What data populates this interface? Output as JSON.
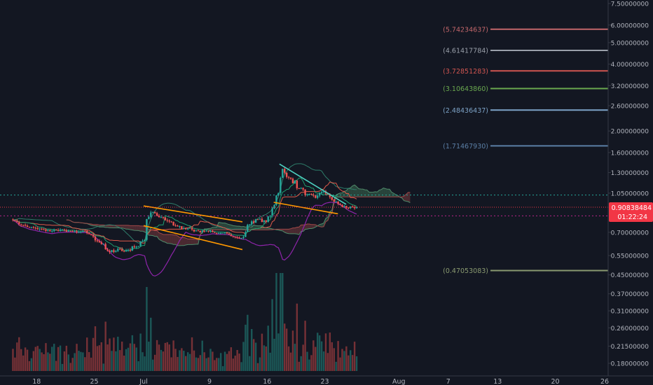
{
  "colors": {
    "background": "#131722",
    "axis_text": "#b2b5be",
    "axis_line": "#363a45",
    "bull": "#26a69a",
    "bear": "#ef5350",
    "price_line": "#f23645",
    "price_tag_bg": "#f23645",
    "price_tag_text": "#ffffff",
    "channel_orange": "#ff9800",
    "wedge_teal": "#4dd0c0",
    "baseline_green": "#1e9e6f",
    "conversion_red": "#e05a4a",
    "cloud_green": "#3d6b52",
    "cloud_red": "#7a3a3e",
    "envelope_purple": "#8e24aa",
    "volume": "#8a6d2f",
    "cyan_hline": "#26a69a",
    "magenta_hline": "#b9268a"
  },
  "price_axis": {
    "scale": "log",
    "ticks": [
      "7.50000000",
      "6.00000000",
      "5.00000000",
      "4.00000000",
      "3.20000000",
      "2.60000000",
      "2.00000000",
      "1.60000000",
      "1.30000000",
      "1.05000000",
      "0.70000000",
      "0.55000000",
      "0.45000000",
      "0.37000000",
      "0.31000000",
      "0.26000000",
      "0.21500000",
      "0.18000000"
    ],
    "tick_values": [
      7.5,
      6.0,
      5.0,
      4.0,
      3.2,
      2.6,
      2.0,
      1.6,
      1.3,
      1.05,
      0.7,
      0.55,
      0.45,
      0.37,
      0.31,
      0.26,
      0.215,
      0.18
    ],
    "partial_label": "0."
  },
  "time_axis": {
    "labels": [
      "18",
      "25",
      "Jul",
      "9",
      "16",
      "23",
      "Aug",
      "7",
      "13",
      "20",
      "26"
    ],
    "day_index": [
      -13,
      -6,
      0,
      8,
      15,
      22,
      31,
      37,
      43,
      50,
      56
    ]
  },
  "current_price": {
    "value": "0.90838484",
    "value_num": 0.908,
    "countdown": "01:22:24"
  },
  "horizontal_levels": [
    {
      "label": "(5.74234637)",
      "value": 5.742,
      "color": "#c2666a"
    },
    {
      "label": "(4.61417784)",
      "value": 4.614,
      "color": "#9aa0aa"
    },
    {
      "label": "(3.72851283)",
      "value": 3.729,
      "color": "#d05550"
    },
    {
      "label": "(3.10643860)",
      "value": 3.106,
      "color": "#6aa84f"
    },
    {
      "label": "(2.48436437)",
      "value": 2.484,
      "color": "#7da3c7"
    },
    {
      "label": "(1.71467930)",
      "value": 1.715,
      "color": "#5b7fa6"
    },
    {
      "label": "(0.47053083)",
      "value": 0.471,
      "color": "#8a9a70"
    }
  ],
  "dashed_levels": [
    {
      "value": 1.03,
      "color": "#26a69a"
    },
    {
      "value": 0.83,
      "color": "#b9268a"
    }
  ],
  "chart_data": {
    "type": "candlestick",
    "scale": "log",
    "x_unit": "days from Jul 1",
    "ylim": [
      0.17,
      8.0
    ],
    "trendlines": [
      {
        "name": "channel-upper",
        "color": "orange",
        "points": [
          [
            0,
            0.92
          ],
          [
            12,
            0.78
          ]
        ]
      },
      {
        "name": "channel-lower",
        "color": "orange",
        "points": [
          [
            0,
            0.75
          ],
          [
            12,
            0.585
          ]
        ]
      },
      {
        "name": "wedge-upper",
        "color": "teal",
        "points": [
          [
            16.5,
            1.42
          ],
          [
            24.6,
            0.935
          ]
        ]
      },
      {
        "name": "wedge-lower",
        "color": "orange",
        "points": [
          [
            15.8,
            0.955
          ],
          [
            23.6,
            0.848
          ]
        ]
      }
    ],
    "candles": [
      [
        -16,
        0.8,
        0.81,
        0.74,
        0.76
      ],
      [
        -15,
        0.76,
        0.78,
        0.72,
        0.74
      ],
      [
        -14,
        0.74,
        0.76,
        0.71,
        0.73
      ],
      [
        -13,
        0.73,
        0.75,
        0.7,
        0.72
      ],
      [
        -12,
        0.72,
        0.74,
        0.69,
        0.71
      ],
      [
        -11,
        0.71,
        0.74,
        0.69,
        0.72
      ],
      [
        -10,
        0.72,
        0.74,
        0.7,
        0.71
      ],
      [
        -9,
        0.71,
        0.73,
        0.69,
        0.7
      ],
      [
        -8,
        0.7,
        0.72,
        0.68,
        0.71
      ],
      [
        -7,
        0.71,
        0.72,
        0.66,
        0.67
      ],
      [
        -6,
        0.67,
        0.69,
        0.6,
        0.62
      ],
      [
        -5,
        0.62,
        0.64,
        0.55,
        0.57
      ],
      [
        -4,
        0.57,
        0.61,
        0.53,
        0.59
      ],
      [
        -3,
        0.59,
        0.62,
        0.56,
        0.58
      ],
      [
        -2,
        0.58,
        0.62,
        0.55,
        0.6
      ],
      [
        -1,
        0.6,
        0.66,
        0.58,
        0.64
      ],
      [
        0,
        0.64,
        0.95,
        0.62,
        0.86
      ],
      [
        1,
        0.86,
        0.9,
        0.8,
        0.82
      ],
      [
        2,
        0.82,
        0.85,
        0.76,
        0.79
      ],
      [
        3,
        0.79,
        0.83,
        0.74,
        0.75
      ],
      [
        4,
        0.75,
        0.78,
        0.71,
        0.73
      ],
      [
        5,
        0.73,
        0.76,
        0.7,
        0.72
      ],
      [
        6,
        0.72,
        0.75,
        0.69,
        0.7
      ],
      [
        7,
        0.7,
        0.73,
        0.68,
        0.71
      ],
      [
        8,
        0.71,
        0.74,
        0.68,
        0.69
      ],
      [
        9,
        0.69,
        0.72,
        0.67,
        0.7
      ],
      [
        10,
        0.7,
        0.72,
        0.66,
        0.67
      ],
      [
        11,
        0.67,
        0.69,
        0.64,
        0.66
      ],
      [
        12,
        0.66,
        0.78,
        0.65,
        0.76
      ],
      [
        13,
        0.76,
        0.82,
        0.73,
        0.8
      ],
      [
        14,
        0.8,
        0.86,
        0.76,
        0.78
      ],
      [
        15,
        0.78,
        0.95,
        0.77,
        0.93
      ],
      [
        16,
        0.93,
        1.52,
        0.9,
        1.35
      ],
      [
        17,
        1.35,
        1.42,
        1.15,
        1.22
      ],
      [
        18,
        1.22,
        1.26,
        1.05,
        1.1
      ],
      [
        19,
        1.1,
        1.14,
        1.0,
        1.04
      ],
      [
        20,
        1.04,
        1.08,
        0.97,
        1.0
      ],
      [
        21,
        1.0,
        1.1,
        0.96,
        1.07
      ],
      [
        22,
        1.07,
        1.1,
        0.95,
        0.98
      ],
      [
        23,
        0.98,
        1.0,
        0.91,
        0.93
      ],
      [
        24,
        0.93,
        0.95,
        0.88,
        0.9
      ],
      [
        25,
        0.9,
        0.94,
        0.87,
        0.908
      ]
    ]
  }
}
